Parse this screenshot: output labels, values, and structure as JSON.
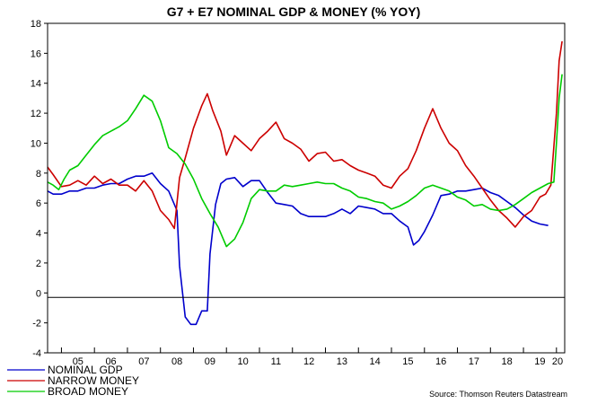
{
  "chart_data": {
    "type": "line",
    "title": "G7 + E7 NOMINAL GDP & MONEY (% YOY)",
    "source": "Source: Thomson Reuters Datastream",
    "xlabel": "",
    "ylabel": "",
    "xlim": [
      2004.58,
      2020.25
    ],
    "ylim": [
      -4,
      18
    ],
    "yticks": [
      -4,
      -2,
      0,
      2,
      4,
      6,
      8,
      10,
      12,
      14,
      16,
      18
    ],
    "xtick_labels": [
      "05",
      "06",
      "07",
      "08",
      "09",
      "10",
      "11",
      "12",
      "13",
      "14",
      "15",
      "16",
      "17",
      "18",
      "19",
      "20"
    ],
    "reference_line": -0.3,
    "grid": false,
    "legend_position": "bottom-left",
    "series": [
      {
        "name": "NOMINAL GDP",
        "color": "#0000cc",
        "points": [
          [
            2004.58,
            6.8
          ],
          [
            2004.75,
            6.6
          ],
          [
            2005.0,
            6.6
          ],
          [
            2005.25,
            6.8
          ],
          [
            2005.5,
            6.8
          ],
          [
            2005.75,
            7.0
          ],
          [
            2006.0,
            7.0
          ],
          [
            2006.25,
            7.2
          ],
          [
            2006.5,
            7.3
          ],
          [
            2006.75,
            7.3
          ],
          [
            2007.0,
            7.6
          ],
          [
            2007.25,
            7.8
          ],
          [
            2007.5,
            7.8
          ],
          [
            2007.75,
            8.0
          ],
          [
            2008.0,
            7.3
          ],
          [
            2008.25,
            6.8
          ],
          [
            2008.5,
            5.5
          ],
          [
            2008.58,
            1.8
          ],
          [
            2008.75,
            -1.6
          ],
          [
            2008.92,
            -2.1
          ],
          [
            2009.08,
            -2.1
          ],
          [
            2009.25,
            -1.2
          ],
          [
            2009.42,
            -1.2
          ],
          [
            2009.5,
            2.6
          ],
          [
            2009.67,
            5.9
          ],
          [
            2009.83,
            7.3
          ],
          [
            2010.0,
            7.6
          ],
          [
            2010.25,
            7.7
          ],
          [
            2010.5,
            7.1
          ],
          [
            2010.75,
            7.5
          ],
          [
            2011.0,
            7.5
          ],
          [
            2011.25,
            6.7
          ],
          [
            2011.5,
            6.0
          ],
          [
            2011.75,
            5.9
          ],
          [
            2012.0,
            5.8
          ],
          [
            2012.25,
            5.3
          ],
          [
            2012.5,
            5.1
          ],
          [
            2012.75,
            5.1
          ],
          [
            2013.0,
            5.1
          ],
          [
            2013.25,
            5.3
          ],
          [
            2013.5,
            5.6
          ],
          [
            2013.75,
            5.3
          ],
          [
            2014.0,
            5.8
          ],
          [
            2014.25,
            5.7
          ],
          [
            2014.5,
            5.6
          ],
          [
            2014.75,
            5.3
          ],
          [
            2015.0,
            5.3
          ],
          [
            2015.25,
            4.8
          ],
          [
            2015.5,
            4.4
          ],
          [
            2015.67,
            3.2
          ],
          [
            2015.83,
            3.5
          ],
          [
            2016.0,
            4.1
          ],
          [
            2016.25,
            5.2
          ],
          [
            2016.5,
            6.5
          ],
          [
            2016.75,
            6.6
          ],
          [
            2017.0,
            6.8
          ],
          [
            2017.25,
            6.8
          ],
          [
            2017.5,
            6.9
          ],
          [
            2017.75,
            7.0
          ],
          [
            2018.0,
            6.7
          ],
          [
            2018.25,
            6.5
          ],
          [
            2018.5,
            6.1
          ],
          [
            2018.75,
            5.7
          ],
          [
            2019.0,
            5.2
          ],
          [
            2019.25,
            4.8
          ],
          [
            2019.5,
            4.6
          ],
          [
            2019.75,
            4.5
          ]
        ]
      },
      {
        "name": "NARROW MONEY",
        "color": "#cc0000",
        "points": [
          [
            2004.58,
            8.4
          ],
          [
            2004.75,
            7.9
          ],
          [
            2005.0,
            7.1
          ],
          [
            2005.25,
            7.2
          ],
          [
            2005.5,
            7.5
          ],
          [
            2005.75,
            7.2
          ],
          [
            2006.0,
            7.8
          ],
          [
            2006.25,
            7.3
          ],
          [
            2006.5,
            7.6
          ],
          [
            2006.75,
            7.2
          ],
          [
            2007.0,
            7.2
          ],
          [
            2007.25,
            6.8
          ],
          [
            2007.5,
            7.5
          ],
          [
            2007.75,
            6.8
          ],
          [
            2008.0,
            5.5
          ],
          [
            2008.25,
            4.9
          ],
          [
            2008.42,
            4.3
          ],
          [
            2008.58,
            7.7
          ],
          [
            2008.75,
            9.0
          ],
          [
            2009.0,
            11.0
          ],
          [
            2009.25,
            12.5
          ],
          [
            2009.42,
            13.3
          ],
          [
            2009.58,
            12.2
          ],
          [
            2009.83,
            10.8
          ],
          [
            2010.0,
            9.2
          ],
          [
            2010.25,
            10.5
          ],
          [
            2010.5,
            10.0
          ],
          [
            2010.75,
            9.5
          ],
          [
            2011.0,
            10.3
          ],
          [
            2011.25,
            10.8
          ],
          [
            2011.5,
            11.4
          ],
          [
            2011.75,
            10.3
          ],
          [
            2012.0,
            10.0
          ],
          [
            2012.25,
            9.6
          ],
          [
            2012.5,
            8.8
          ],
          [
            2012.75,
            9.3
          ],
          [
            2013.0,
            9.4
          ],
          [
            2013.25,
            8.8
          ],
          [
            2013.5,
            8.9
          ],
          [
            2013.75,
            8.5
          ],
          [
            2014.0,
            8.2
          ],
          [
            2014.25,
            8.0
          ],
          [
            2014.5,
            7.8
          ],
          [
            2014.75,
            7.2
          ],
          [
            2015.0,
            7.0
          ],
          [
            2015.25,
            7.8
          ],
          [
            2015.5,
            8.3
          ],
          [
            2015.75,
            9.5
          ],
          [
            2016.0,
            11.0
          ],
          [
            2016.25,
            12.3
          ],
          [
            2016.5,
            11.0
          ],
          [
            2016.75,
            10.0
          ],
          [
            2017.0,
            9.5
          ],
          [
            2017.25,
            8.5
          ],
          [
            2017.5,
            7.8
          ],
          [
            2017.75,
            7.0
          ],
          [
            2018.0,
            6.2
          ],
          [
            2018.25,
            5.5
          ],
          [
            2018.5,
            5.0
          ],
          [
            2018.75,
            4.4
          ],
          [
            2019.0,
            5.1
          ],
          [
            2019.25,
            5.5
          ],
          [
            2019.5,
            6.4
          ],
          [
            2019.67,
            6.6
          ],
          [
            2019.83,
            7.2
          ],
          [
            2020.0,
            12.0
          ],
          [
            2020.08,
            15.5
          ],
          [
            2020.17,
            16.8
          ]
        ]
      },
      {
        "name": "BROAD MONEY",
        "color": "#00cc00",
        "points": [
          [
            2004.58,
            7.4
          ],
          [
            2004.75,
            7.2
          ],
          [
            2004.92,
            6.9
          ],
          [
            2005.08,
            7.6
          ],
          [
            2005.25,
            8.2
          ],
          [
            2005.5,
            8.5
          ],
          [
            2005.75,
            9.2
          ],
          [
            2006.0,
            9.9
          ],
          [
            2006.25,
            10.5
          ],
          [
            2006.5,
            10.8
          ],
          [
            2006.75,
            11.1
          ],
          [
            2007.0,
            11.5
          ],
          [
            2007.25,
            12.3
          ],
          [
            2007.5,
            13.2
          ],
          [
            2007.75,
            12.8
          ],
          [
            2008.0,
            11.5
          ],
          [
            2008.25,
            9.7
          ],
          [
            2008.5,
            9.3
          ],
          [
            2008.75,
            8.6
          ],
          [
            2009.0,
            7.6
          ],
          [
            2009.25,
            6.3
          ],
          [
            2009.5,
            5.3
          ],
          [
            2009.75,
            4.4
          ],
          [
            2010.0,
            3.1
          ],
          [
            2010.25,
            3.6
          ],
          [
            2010.5,
            4.7
          ],
          [
            2010.75,
            6.3
          ],
          [
            2011.0,
            6.9
          ],
          [
            2011.25,
            6.8
          ],
          [
            2011.5,
            6.8
          ],
          [
            2011.75,
            7.2
          ],
          [
            2012.0,
            7.1
          ],
          [
            2012.25,
            7.2
          ],
          [
            2012.5,
            7.3
          ],
          [
            2012.75,
            7.4
          ],
          [
            2013.0,
            7.3
          ],
          [
            2013.25,
            7.3
          ],
          [
            2013.5,
            7.0
          ],
          [
            2013.75,
            6.8
          ],
          [
            2014.0,
            6.4
          ],
          [
            2014.25,
            6.3
          ],
          [
            2014.5,
            6.1
          ],
          [
            2014.75,
            6.0
          ],
          [
            2015.0,
            5.6
          ],
          [
            2015.25,
            5.8
          ],
          [
            2015.5,
            6.1
          ],
          [
            2015.75,
            6.5
          ],
          [
            2016.0,
            7.0
          ],
          [
            2016.25,
            7.2
          ],
          [
            2016.5,
            7.0
          ],
          [
            2016.75,
            6.8
          ],
          [
            2017.0,
            6.4
          ],
          [
            2017.25,
            6.2
          ],
          [
            2017.5,
            5.8
          ],
          [
            2017.75,
            5.9
          ],
          [
            2018.0,
            5.6
          ],
          [
            2018.25,
            5.5
          ],
          [
            2018.5,
            5.6
          ],
          [
            2018.75,
            5.9
          ],
          [
            2019.0,
            6.3
          ],
          [
            2019.25,
            6.7
          ],
          [
            2019.5,
            7.0
          ],
          [
            2019.75,
            7.3
          ],
          [
            2019.92,
            7.4
          ],
          [
            2020.0,
            10.0
          ],
          [
            2020.08,
            13.0
          ],
          [
            2020.17,
            14.6
          ]
        ]
      }
    ]
  }
}
